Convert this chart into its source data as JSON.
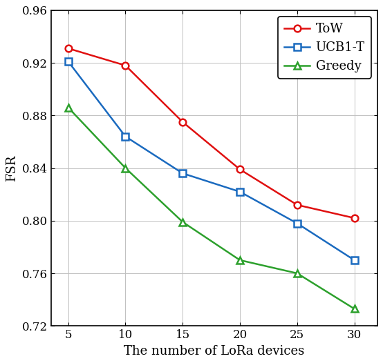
{
  "x": [
    5,
    10,
    15,
    20,
    25,
    30
  ],
  "ToW": [
    0.931,
    0.918,
    0.875,
    0.839,
    0.812,
    0.802
  ],
  "UCB1_T": [
    0.921,
    0.864,
    0.836,
    0.822,
    0.798,
    0.77
  ],
  "Greedy": [
    0.886,
    0.84,
    0.799,
    0.77,
    0.76,
    0.733
  ],
  "ToW_color": "#e01010",
  "UCB1T_color": "#1a6abf",
  "Greedy_color": "#2ca02c",
  "xlabel": "The number of LoRa devices",
  "ylabel": "FSR",
  "ylim": [
    0.72,
    0.96
  ],
  "xlim": [
    3.5,
    32
  ],
  "yticks": [
    0.72,
    0.76,
    0.8,
    0.84,
    0.88,
    0.92,
    0.96
  ],
  "xticks": [
    5,
    10,
    15,
    20,
    25,
    30
  ],
  "legend_labels": [
    "ToW",
    "UCB1-T",
    "Greedy"
  ],
  "legend_loc": "upper right",
  "linewidth": 1.8,
  "markersize": 7
}
